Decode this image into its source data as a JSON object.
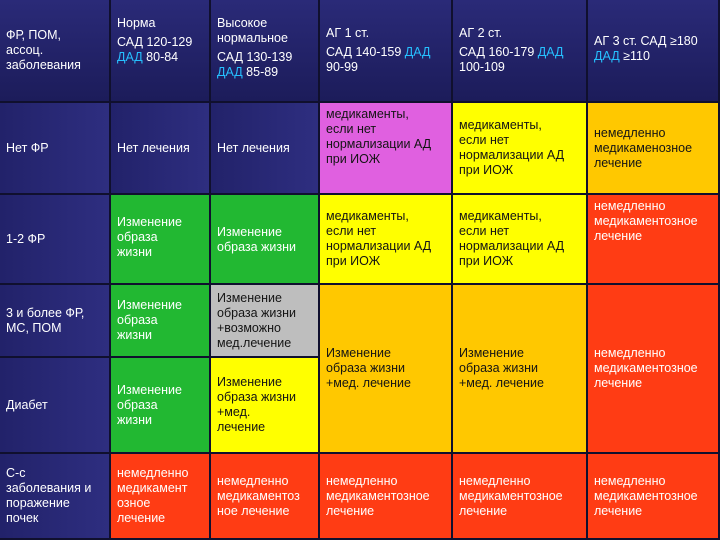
{
  "colors": {
    "header_bg": "#22226a",
    "blue_bg": "#2b2b7a",
    "green": "#22b832",
    "yellow": "#ffff00",
    "orange": "#ffc800",
    "red": "#ff3c14",
    "magenta": "#e060e0",
    "grey": "#bebebe",
    "dad_accent": "#26c0ff"
  },
  "header": {
    "col0": {
      "line1": "ФР, ПОМ,",
      "line2": "ассоц.",
      "line3": "заболевания"
    },
    "col1": {
      "title": "Норма",
      "sad": "САД 120-129",
      "dad_label": "ДАД",
      "dad_value": " 80-84"
    },
    "col2": {
      "title1": "Высокое",
      "title2": "нормальное",
      "sad": "САД 130-139",
      "dad_label": "ДАД",
      "dad_value": " 85-89"
    },
    "col3": {
      "title": "АГ 1 ст.",
      "sad": "САД 140-159 ",
      "dad_label": "ДАД",
      "dad_value": "90-99"
    },
    "col4": {
      "title": "АГ 2 ст.",
      "sad": "САД 160-179 ",
      "dad_label": "ДАД",
      "dad_value": "100-109"
    },
    "col5": {
      "title": "АГ 3 ст. САД ≥180",
      "dad_label": "ДАД",
      "dad_value": " ≥110"
    }
  },
  "rows": [
    {
      "label": "Нет ФР"
    },
    {
      "label": "1-2 ФР"
    },
    {
      "label1": "3 и более ФР,",
      "label2": "МС, ПОМ"
    },
    {
      "label": "Диабет"
    },
    {
      "label1": "С-с",
      "label2": "заболевания и",
      "label3": "поражение",
      "label4": "почек"
    }
  ],
  "cells": {
    "r1c1": "Нет лечения",
    "r1c2": "Нет лечения",
    "r1c3": [
      "медикаменты,",
      "если нет",
      "нормализации АД",
      "при ИОЖ"
    ],
    "r1c4": [
      "медикаменты,",
      "если нет",
      "нормализации АД",
      "при ИОЖ"
    ],
    "r1c5": [
      "немедленно",
      "медикаменозное",
      "лечение"
    ],
    "r2c1": [
      "Изменение",
      "образа",
      "жизни"
    ],
    "r2c2": [
      "Изменение",
      "образа жизни"
    ],
    "r2c3": [
      "медикаменты,",
      "если нет",
      "нормализации АД",
      "при ИОЖ"
    ],
    "r2c4": [
      "медикаменты,",
      "если нет",
      "нормализации АД",
      "при ИОЖ"
    ],
    "r2c5": [
      "немедленно",
      "медикаментозное",
      "лечение"
    ],
    "r3c1": [
      "Изменение",
      "образа",
      "жизни"
    ],
    "r3c2": [
      "Изменение",
      "образа жизни",
      "+возможно",
      "мед.лечение"
    ],
    "r34c3": [
      "Изменение",
      "образа жизни",
      "+мед. лечение"
    ],
    "r34c4": [
      "Изменение",
      "образа жизни",
      "+мед. лечение"
    ],
    "r34c5": [
      "немедленно",
      "медикаментозное",
      "лечение"
    ],
    "r4c1": [
      "Изменение",
      "образа",
      "жизни"
    ],
    "r4c2": [
      "Изменение",
      "образа жизни",
      "+мед.",
      "лечение"
    ],
    "r5c1": [
      "немедленно",
      "медикамент",
      "озное",
      "лечение"
    ],
    "r5c2": [
      "немедленно",
      "медикаментоз",
      "ное лечение"
    ],
    "r5c3": [
      "немедленно",
      "медикаментозное",
      "лечение"
    ],
    "r5c4": [
      "немедленно",
      "медикаментозное",
      "лечение"
    ],
    "r5c5": [
      "немедленно",
      "медикаментозное",
      "лечение"
    ]
  }
}
